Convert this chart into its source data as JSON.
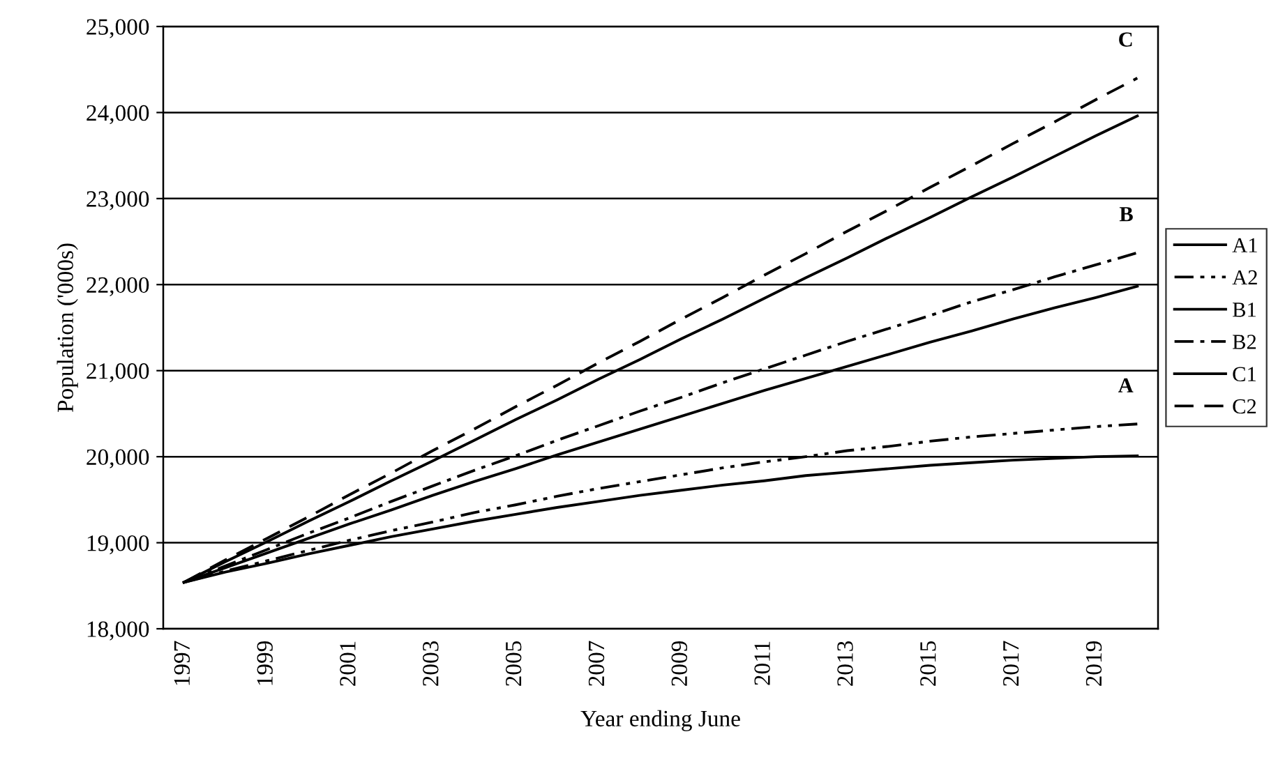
{
  "chart_data": {
    "type": "line",
    "xlabel": "Year ending June",
    "ylabel": "Population ('000s)",
    "categories": [
      "1997",
      null,
      "1999",
      null,
      "2001",
      null,
      "2003",
      null,
      "2005",
      null,
      "2007",
      null,
      "2009",
      null,
      "2011",
      null,
      "2013",
      null,
      "2015",
      null,
      "2017",
      null,
      "2019",
      null
    ],
    "series": [
      {
        "name": "A1",
        "color": "#000000",
        "line_style": "solid",
        "values": [
          18540,
          18660,
          18760,
          18870,
          18970,
          19070,
          19160,
          19250,
          19330,
          19410,
          19480,
          19550,
          19610,
          19670,
          19720,
          19780,
          19820,
          19860,
          19900,
          19930,
          19960,
          19980,
          20000,
          20010
        ]
      },
      {
        "name": "A2",
        "color": "#000000",
        "line_style": "dashdotdot",
        "values": [
          18540,
          18670,
          18790,
          18910,
          19030,
          19140,
          19240,
          19350,
          19440,
          19540,
          19630,
          19710,
          19790,
          19870,
          19940,
          20000,
          20070,
          20120,
          20180,
          20230,
          20270,
          20310,
          20350,
          20380
        ]
      },
      {
        "name": "B1",
        "color": "#000000",
        "line_style": "solid",
        "values": [
          18540,
          18710,
          18880,
          19050,
          19220,
          19380,
          19550,
          19710,
          19860,
          20020,
          20170,
          20320,
          20470,
          20620,
          20770,
          20910,
          21050,
          21190,
          21330,
          21460,
          21600,
          21730,
          21850,
          21980
        ]
      },
      {
        "name": "B2",
        "color": "#000000",
        "line_style": "dashdot",
        "values": [
          18540,
          18730,
          18920,
          19110,
          19290,
          19480,
          19660,
          19840,
          20010,
          20190,
          20360,
          20530,
          20690,
          20860,
          21020,
          21180,
          21340,
          21490,
          21640,
          21800,
          21940,
          22090,
          22230,
          22370
        ]
      },
      {
        "name": "C1",
        "color": "#000000",
        "line_style": "solid",
        "values": [
          18540,
          18780,
          19010,
          19250,
          19480,
          19720,
          19950,
          20190,
          20430,
          20660,
          20900,
          21130,
          21370,
          21600,
          21840,
          22080,
          22310,
          22550,
          22780,
          23020,
          23250,
          23490,
          23730,
          23960
        ]
      },
      {
        "name": "C2",
        "color": "#000000",
        "line_style": "dashed",
        "values": [
          18540,
          18800,
          19050,
          19300,
          19560,
          19810,
          20070,
          20320,
          20580,
          20830,
          21090,
          21340,
          21600,
          21850,
          22110,
          22360,
          22620,
          22870,
          23130,
          23380,
          23640,
          23890,
          24150,
          24400
        ]
      }
    ],
    "ylim": [
      18000,
      25000
    ],
    "yticks": [
      {
        "value": 18000,
        "label": "18,000"
      },
      {
        "value": 19000,
        "label": "19,000"
      },
      {
        "value": 20000,
        "label": "20,000"
      },
      {
        "value": 21000,
        "label": "21,000"
      },
      {
        "value": 22000,
        "label": "22,000"
      },
      {
        "value": 23000,
        "label": "23,000"
      },
      {
        "value": 24000,
        "label": "24,000"
      },
      {
        "value": 25000,
        "label": "25,000"
      }
    ],
    "grid": "y",
    "legend": "right",
    "marker": "none",
    "annotations": [
      "C",
      "B",
      "A"
    ]
  }
}
